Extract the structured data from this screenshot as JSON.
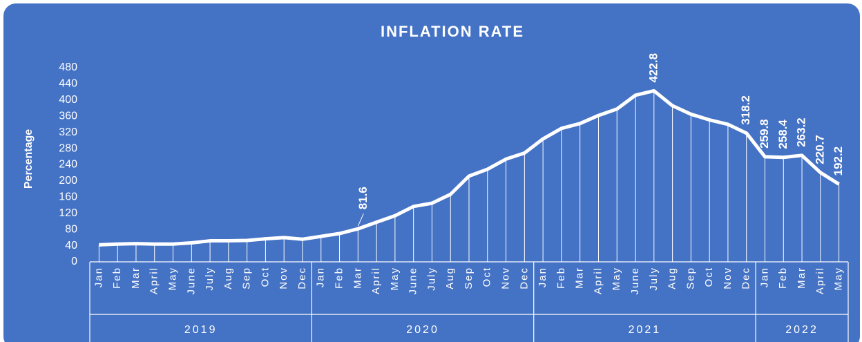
{
  "chart_data": {
    "type": "line",
    "title": "INFLATION RATE",
    "y_label": "Percentage",
    "groups": [
      {
        "label": "2019",
        "categories": [
          "Jan",
          "Feb",
          "Mar",
          "April",
          "May",
          "June",
          "July",
          "Aug",
          "Sep",
          "Oct",
          "Nov",
          "Dec"
        ]
      },
      {
        "label": "2020",
        "categories": [
          "Jan",
          "Feb",
          "Mar",
          "April",
          "May",
          "June",
          "July",
          "Aug",
          "Sep",
          "Oct",
          "Nov",
          "Dec"
        ]
      },
      {
        "label": "2021",
        "categories": [
          "Jan",
          "Feb",
          "Mar",
          "April",
          "May",
          "June",
          "July",
          "Aug",
          "Sep",
          "Oct",
          "Nov",
          "Dec"
        ]
      },
      {
        "label": "2022",
        "categories": [
          "Jan",
          "Feb",
          "Mar",
          "April",
          "May"
        ]
      }
    ],
    "values": [
      42,
      44,
      45,
      44,
      44,
      47,
      52,
      52,
      53,
      57,
      60,
      56,
      63,
      70,
      81.6,
      98,
      114,
      137,
      145,
      167,
      212,
      229,
      254,
      269,
      304,
      330,
      342,
      362,
      378,
      412,
      422.8,
      386,
      365,
      351,
      340,
      318.2,
      259.8,
      258.4,
      263.2,
      220.7,
      192.2
    ],
    "value_labels": [
      null,
      null,
      null,
      null,
      null,
      null,
      null,
      null,
      null,
      null,
      null,
      null,
      null,
      null,
      "81.6",
      null,
      null,
      null,
      null,
      null,
      null,
      null,
      null,
      null,
      null,
      null,
      null,
      null,
      null,
      null,
      "422.8",
      null,
      null,
      null,
      null,
      "318.2",
      "259.8",
      "258.4",
      "263.2",
      "220.7",
      "192.2"
    ],
    "color": "#ffffff",
    "background": "#4472c4",
    "ylim": [
      0,
      480
    ],
    "yticks": [
      0,
      40,
      80,
      120,
      160,
      200,
      240,
      280,
      320,
      360,
      400,
      440,
      480
    ],
    "drop_lines": true
  }
}
